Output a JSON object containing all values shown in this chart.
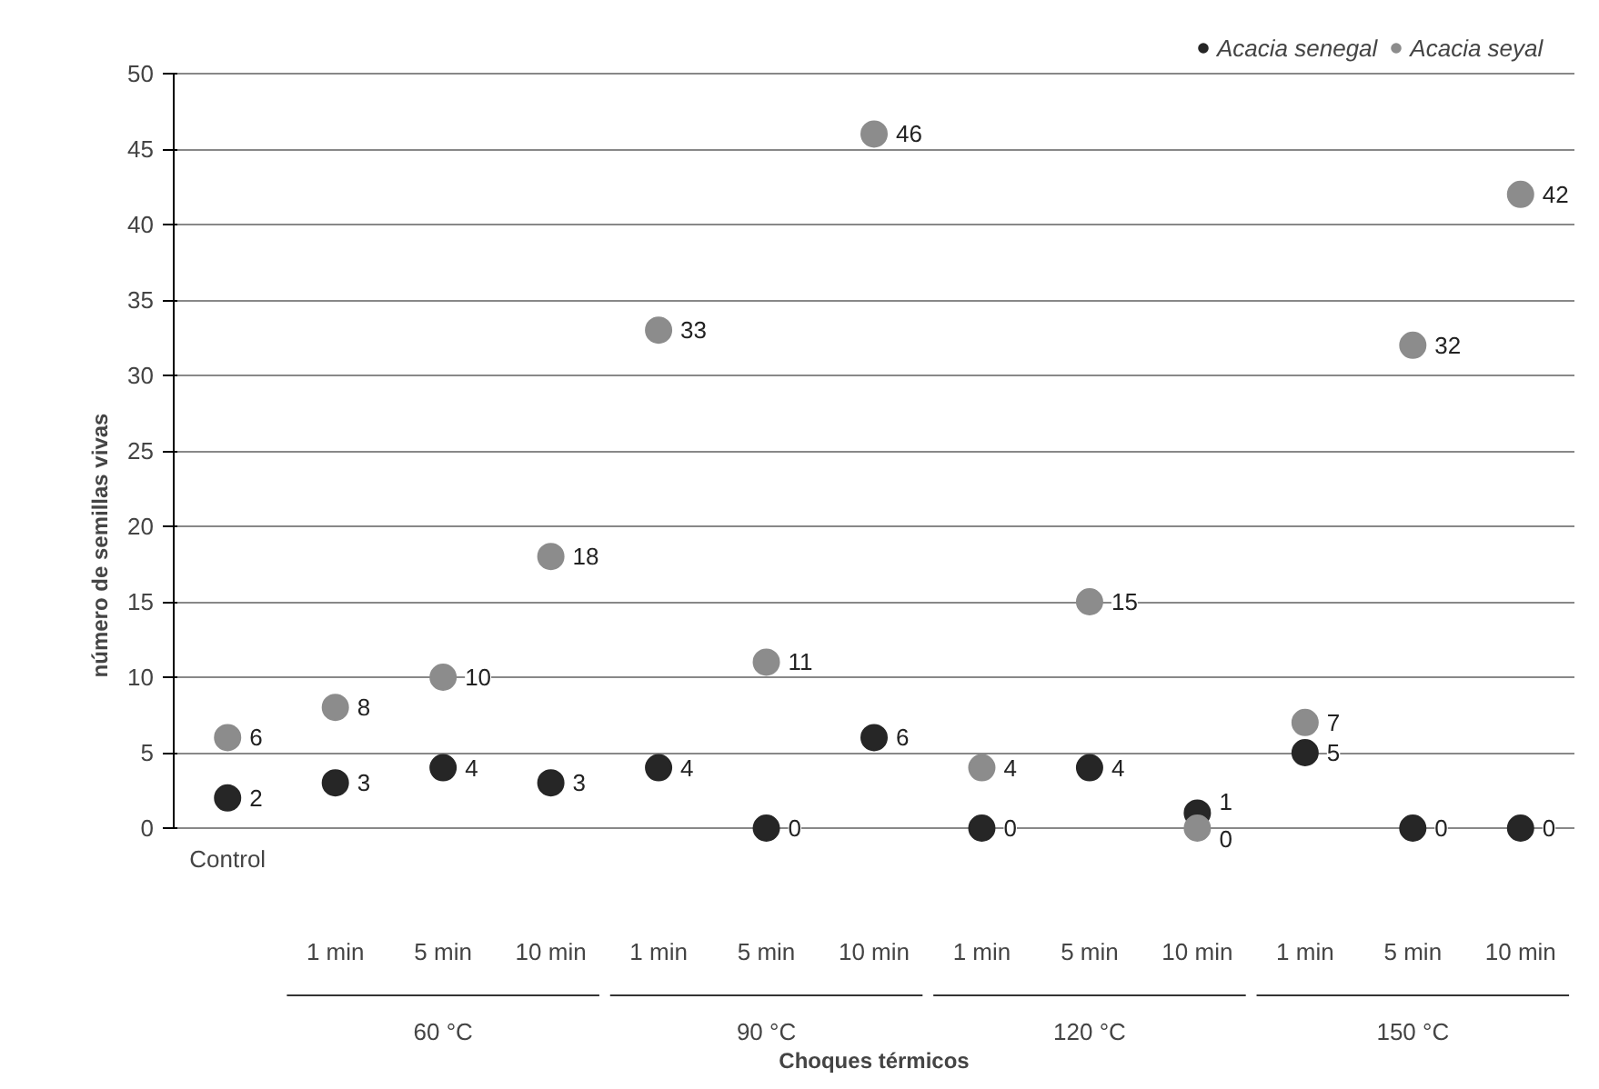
{
  "chart_data": {
    "type": "scatter",
    "xlabel": "Choques térmicos",
    "ylabel": "número de semillas vivas",
    "categories": [
      "Control",
      "1 min",
      "5 min",
      "10 min",
      "1 min",
      "5 min",
      "10 min",
      "1 min",
      "5 min",
      "10 min",
      "1 min",
      "5 min",
      "10 min"
    ],
    "annotations": [
      "60 °C",
      "90 °C",
      "120 °C",
      "150 °C"
    ],
    "series": [
      {
        "name": "Acacia senegal",
        "color": "#262626",
        "values": [
          2,
          3,
          4,
          3,
          4,
          0,
          6,
          0,
          4,
          1,
          5,
          0,
          0
        ]
      },
      {
        "name": "Acacia seyal",
        "color": "#8c8c8c",
        "values": [
          6,
          8,
          10,
          18,
          33,
          11,
          46,
          4,
          15,
          0,
          7,
          32,
          42
        ]
      }
    ],
    "ylim": [
      0,
      50
    ],
    "yticks": [
      0,
      5,
      10,
      15,
      20,
      25,
      30,
      35,
      40,
      45,
      50
    ],
    "grid": "y",
    "legend": "top right",
    "marker": "circle",
    "data_labels": true
  }
}
